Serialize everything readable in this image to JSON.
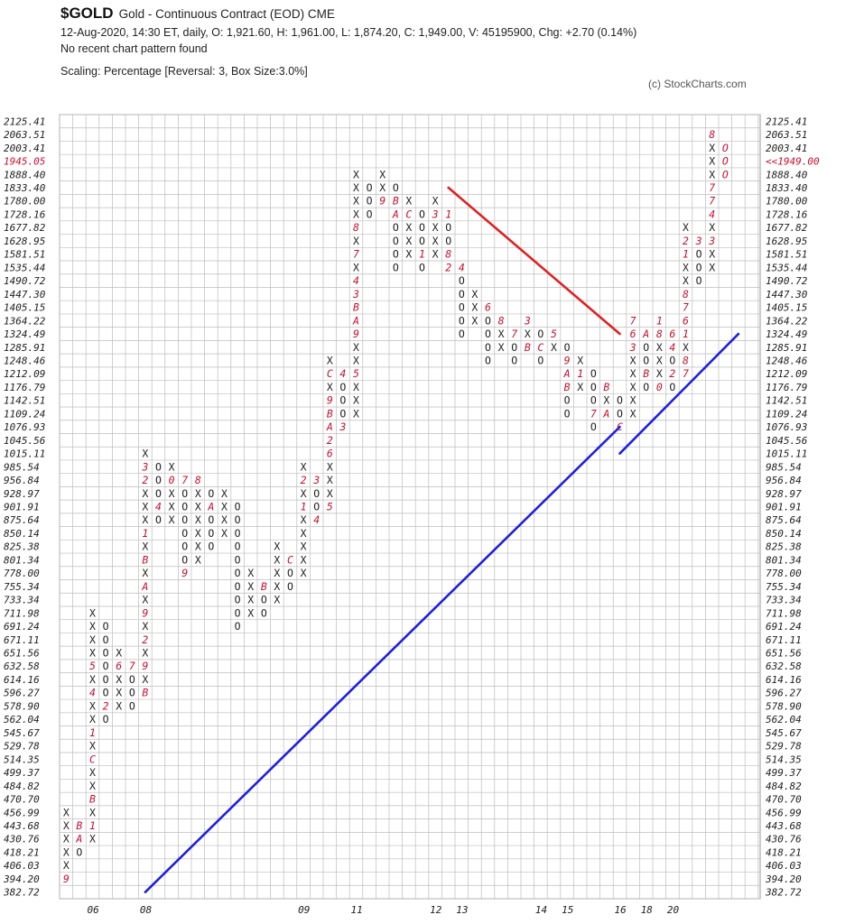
{
  "header": {
    "symbol": "$GOLD",
    "title": "Gold - Continuous Contract (EOD)  CME",
    "stats": "12-Aug-2020, 14:30 ET, daily, O: 1,921.60, H: 1,961.00, L: 1,874.20, C: 1,949.00, V: 45195900, Chg: +2.70 (0.14%)",
    "pattern": "No recent chart pattern found",
    "scaling": "Scaling: Percentage [Reversal: 3, Box Size:3.0%]",
    "copyright": "(c) StockCharts.com"
  },
  "chart_data": {
    "type": "point-and-figure",
    "scale": "percentage",
    "reversal": 3,
    "box_size_pct": 3.0,
    "grid": true,
    "price_levels": [
      "2125.41",
      "2063.51",
      "2003.41",
      "1945.05",
      "1888.40",
      "1833.40",
      "1780.00",
      "1728.16",
      "1677.82",
      "1628.95",
      "1581.51",
      "1535.44",
      "1490.72",
      "1447.30",
      "1405.15",
      "1364.22",
      "1324.49",
      "1285.91",
      "1248.46",
      "1212.09",
      "1176.79",
      "1142.51",
      "1109.24",
      "1076.93",
      "1045.56",
      "1015.11",
      "985.54",
      "956.84",
      "928.97",
      "901.91",
      "875.64",
      "850.14",
      "825.38",
      "801.34",
      "778.00",
      "755.34",
      "733.34",
      "711.98",
      "691.24",
      "671.11",
      "651.56",
      "632.58",
      "614.16",
      "596.27",
      "578.90",
      "562.04",
      "545.67",
      "529.78",
      "514.35",
      "499.37",
      "484.82",
      "470.70",
      "456.99",
      "443.68",
      "430.76",
      "418.21",
      "406.03",
      "394.20",
      "382.72"
    ],
    "left_highlight": {
      "level": "1945.05",
      "color": "#c8102e"
    },
    "right_highlight": {
      "label": "<<1949.00",
      "color": "#c8102e"
    },
    "x_labels": [
      {
        "col": 2,
        "text": "06"
      },
      {
        "col": 6,
        "text": "08"
      },
      {
        "col": 18,
        "text": "09"
      },
      {
        "col": 22,
        "text": "11"
      },
      {
        "col": 28,
        "text": "12"
      },
      {
        "col": 30,
        "text": "13"
      },
      {
        "col": 36,
        "text": "14"
      },
      {
        "col": 38,
        "text": "15"
      },
      {
        "col": 42,
        "text": "16"
      },
      {
        "col": 44,
        "text": "18"
      },
      {
        "col": 46,
        "text": "20"
      }
    ],
    "columns": [
      {
        "col": 0,
        "type": "X",
        "from": 57,
        "to": 52,
        "marks": {
          "57": "9"
        }
      },
      {
        "col": 1,
        "type": "O",
        "from": 53,
        "to": 55,
        "marks": {
          "53": "B",
          "54": "A"
        }
      },
      {
        "col": 2,
        "type": "X",
        "from": 54,
        "to": 37,
        "marks": {
          "53": "1",
          "51": "B",
          "48": "C",
          "46": "1",
          "43": "4",
          "41": "5"
        }
      },
      {
        "col": 3,
        "type": "O",
        "from": 38,
        "to": 45,
        "marks": {
          "44": "2"
        }
      },
      {
        "col": 4,
        "type": "X",
        "from": 44,
        "to": 40,
        "marks": {
          "41": "6"
        }
      },
      {
        "col": 5,
        "type": "O",
        "from": 41,
        "to": 44,
        "marks": {
          "41": "7"
        }
      },
      {
        "col": 6,
        "type": "X",
        "from": 43,
        "to": 25,
        "marks": {
          "43": "B",
          "41": "9",
          "39": "2",
          "37": "9",
          "35": "A",
          "33": "B",
          "31": "1",
          "27": "2",
          "26": "3"
        }
      },
      {
        "col": 7,
        "type": "O",
        "from": 26,
        "to": 30,
        "marks": {
          "29": "4",
          "31": "5"
        }
      },
      {
        "col": 8,
        "type": "X",
        "from": 30,
        "to": 26,
        "marks": {
          "27": "0"
        }
      },
      {
        "col": 9,
        "type": "O",
        "from": 27,
        "to": 34,
        "marks": {
          "27": "7",
          "34": "9"
        }
      },
      {
        "col": 10,
        "type": "X",
        "from": 33,
        "to": 27,
        "marks": {
          "27": "8"
        }
      },
      {
        "col": 11,
        "type": "O",
        "from": 28,
        "to": 32,
        "marks": {
          "29": "A"
        }
      },
      {
        "col": 12,
        "type": "X",
        "from": 31,
        "to": 28,
        "marks": {}
      },
      {
        "col": 13,
        "type": "O",
        "from": 29,
        "to": 38,
        "marks": {}
      },
      {
        "col": 14,
        "type": "X",
        "from": 37,
        "to": 34,
        "marks": {}
      },
      {
        "col": 15,
        "type": "O",
        "from": 35,
        "to": 37,
        "marks": {
          "35": "B"
        }
      },
      {
        "col": 16,
        "type": "X",
        "from": 36,
        "to": 32,
        "marks": {}
      },
      {
        "col": 17,
        "type": "O",
        "from": 33,
        "to": 35,
        "marks": {
          "33": "C"
        }
      },
      {
        "col": 18,
        "type": "X",
        "from": 34,
        "to": 26,
        "marks": {
          "29": "1",
          "27": "2"
        }
      },
      {
        "col": 19,
        "type": "O",
        "from": 27,
        "to": 30,
        "marks": {
          "27": "3",
          "30": "4"
        }
      },
      {
        "col": 20,
        "type": "X",
        "from": 29,
        "to": 18,
        "marks": {
          "29": "5",
          "23": "A",
          "24": "2",
          "22": "B",
          "21": "9",
          "19": "C",
          "25": "6"
        }
      },
      {
        "col": 21,
        "type": "O",
        "from": 19,
        "to": 23,
        "marks": {
          "19": "4",
          "23": "3"
        }
      },
      {
        "col": 22,
        "type": "X",
        "from": 22,
        "to": 4,
        "marks": {
          "19": "5",
          "14": "B",
          "15": "A",
          "16": "9",
          "13": "3",
          "12": "4",
          "10": "7",
          "8": "8"
        }
      },
      {
        "col": 23,
        "type": "O",
        "from": 5,
        "to": 7,
        "marks": {}
      },
      {
        "col": 24,
        "type": "X",
        "from": 6,
        "to": 4,
        "marks": {
          "6": "9"
        }
      },
      {
        "col": 25,
        "type": "O",
        "from": 5,
        "to": 11,
        "marks": {
          "6": "B",
          "7": "A"
        }
      },
      {
        "col": 26,
        "type": "X",
        "from": 10,
        "to": 6,
        "marks": {
          "7": "C"
        }
      },
      {
        "col": 27,
        "type": "O",
        "from": 7,
        "to": 11,
        "marks": {
          "6": "2",
          "10": "1"
        }
      },
      {
        "col": 28,
        "type": "X",
        "from": 10,
        "to": 6,
        "marks": {
          "7": "3"
        }
      },
      {
        "col": 29,
        "type": "O",
        "from": 7,
        "to": 11,
        "marks": {
          "7": "1",
          "10": "8",
          "11": "2"
        }
      },
      {
        "col": 30,
        "type": "O",
        "from": 11,
        "to": 16,
        "marks": {
          "11": "4"
        }
      },
      {
        "col": 31,
        "type": "X",
        "from": 15,
        "to": 13,
        "marks": {}
      },
      {
        "col": 32,
        "type": "O",
        "from": 14,
        "to": 18,
        "marks": {
          "14": "6"
        }
      },
      {
        "col": 33,
        "type": "X",
        "from": 17,
        "to": 15,
        "marks": {
          "15": "8"
        }
      },
      {
        "col": 34,
        "type": "O",
        "from": 16,
        "to": 18,
        "marks": {
          "16": "7",
          "15": "A"
        }
      },
      {
        "col": 35,
        "type": "X",
        "from": 17,
        "to": 15,
        "marks": {
          "15": "3",
          "17": "B"
        }
      },
      {
        "col": 36,
        "type": "O",
        "from": 16,
        "to": 18,
        "marks": {
          "17": "C"
        }
      },
      {
        "col": 37,
        "type": "X",
        "from": 17,
        "to": 16,
        "marks": {
          "16": "5"
        }
      },
      {
        "col": 38,
        "type": "O",
        "from": 17,
        "to": 22,
        "marks": {
          "18": "9",
          "19": "A",
          "20": "B"
        }
      },
      {
        "col": 39,
        "type": "X",
        "from": 20,
        "to": 18,
        "marks": {
          "19": "1"
        }
      },
      {
        "col": 40,
        "type": "O",
        "from": 19,
        "to": 23,
        "marks": {
          "18": "3",
          "22": "7"
        }
      },
      {
        "col": 41,
        "type": "X",
        "from": 22,
        "to": 20,
        "marks": {
          "22": "A",
          "20": "B"
        }
      },
      {
        "col": 42,
        "type": "O",
        "from": 21,
        "to": 23,
        "marks": {
          "23": "C"
        }
      },
      {
        "col": 43,
        "type": "X",
        "from": 22,
        "to": 15,
        "marks": {
          "23": "2",
          "17": "3",
          "16": "6",
          "15": "7"
        }
      },
      {
        "col": 44,
        "type": "O",
        "from": 16,
        "to": 20,
        "marks": {
          "16": "A",
          "19": "B",
          "21": "C"
        }
      },
      {
        "col": 45,
        "type": "X",
        "from": 20,
        "to": 15,
        "marks": {
          "20": "0",
          "16": "8",
          "15": "1"
        }
      },
      {
        "col": 46,
        "type": "O",
        "from": 16,
        "to": 20,
        "marks": {
          "16": "6",
          "19": "2",
          "17": "4"
        }
      },
      {
        "col": 47,
        "type": "X",
        "from": 19,
        "to": 8,
        "marks": {
          "19": "7",
          "18": "8",
          "16": "1",
          "15": "6",
          "14": "7",
          "13": "8",
          "9": "2",
          "10": "1"
        }
      },
      {
        "col": 48,
        "type": "O",
        "from": 9,
        "to": 12,
        "marks": {
          "9": "3"
        }
      },
      {
        "col": 49,
        "type": "X",
        "from": 11,
        "to": 1,
        "marks": {
          "9": "3",
          "7": "4",
          "6": "7",
          "5": "7",
          "1": "8"
        }
      },
      {
        "col": 50,
        "type": "O",
        "from": 2,
        "to": 4,
        "marks": {}
      }
    ],
    "trendlines": [
      {
        "name": "bullish support",
        "color": "#1f1fe0",
        "from": {
          "col": 6,
          "level": "382.72"
        },
        "to": {
          "col": 42,
          "level": "1076.93"
        }
      },
      {
        "name": "bullish support 2",
        "color": "#1f1fe0",
        "from": {
          "col": 42,
          "level": "1015.11"
        },
        "to": {
          "col": 51,
          "level": "1324.49"
        }
      },
      {
        "name": "bearish resistance",
        "color": "#e02020",
        "from": {
          "col": 29,
          "level": "1833.40"
        },
        "to": {
          "col": 42,
          "level": "1324.49"
        }
      }
    ],
    "recent_red_o": [
      {
        "col": 50,
        "from": 2,
        "to": 4
      }
    ]
  }
}
